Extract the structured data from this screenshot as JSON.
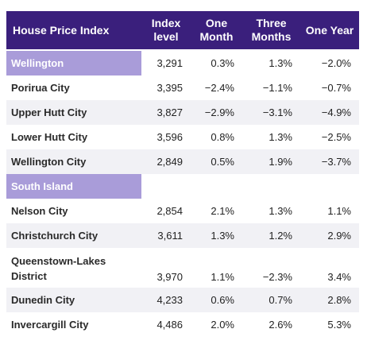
{
  "table": {
    "header": [
      "House Price Index",
      "Index level",
      "One Month",
      "Three Months",
      "One Year"
    ],
    "rows": [
      {
        "region": true,
        "cells": [
          "Wellington",
          "3,291",
          "0.3%",
          "1.3%",
          "−2.0%"
        ]
      },
      {
        "cells": [
          "Porirua City",
          "3,395",
          "−2.4%",
          "−1.1%",
          "−0.7%"
        ]
      },
      {
        "cells": [
          "Upper Hutt City",
          "3,827",
          "−2.9%",
          "−3.1%",
          "−4.9%"
        ]
      },
      {
        "cells": [
          "Lower Hutt City",
          "3,596",
          "0.8%",
          "1.3%",
          "−2.5%"
        ]
      },
      {
        "cells": [
          "Wellington City",
          "2,849",
          "0.5%",
          "1.9%",
          "−3.7%"
        ]
      },
      {
        "region": true,
        "cells": [
          "South Island"
        ]
      },
      {
        "cells": [
          "Nelson City",
          "2,854",
          "2.1%",
          "1.3%",
          "1.1%"
        ]
      },
      {
        "cells": [
          "Christchurch City",
          "3,611",
          "1.3%",
          "1.2%",
          "2.9%"
        ]
      },
      {
        "cells": [
          "Queenstown-Lakes District",
          "3,970",
          "1.1%",
          "−2.3%",
          "3.4%"
        ]
      },
      {
        "cells": [
          "Dunedin City",
          "4,233",
          "0.6%",
          "0.7%",
          "2.8%"
        ]
      },
      {
        "cells": [
          "Invercargill City",
          "4,486",
          "2.0%",
          "2.6%",
          "5.3%"
        ]
      }
    ]
  }
}
